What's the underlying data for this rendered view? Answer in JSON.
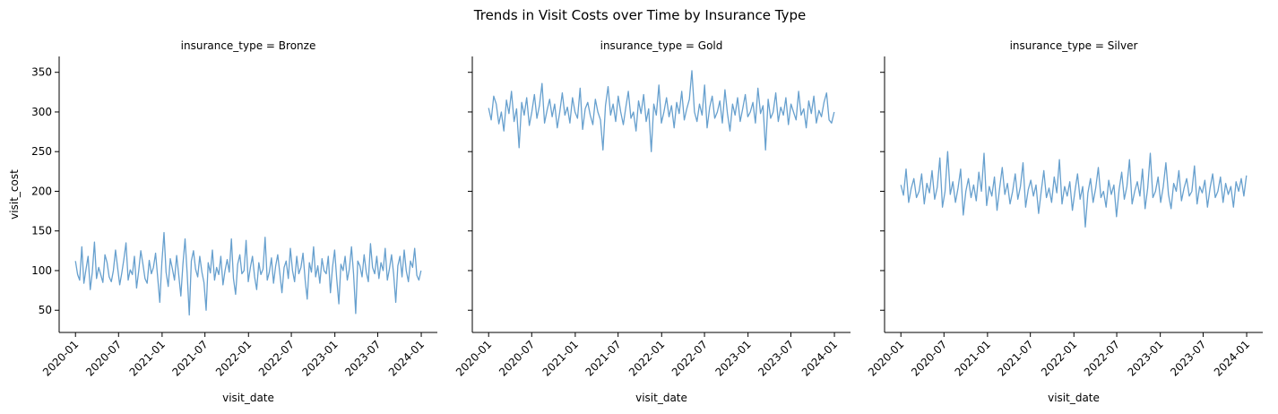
{
  "chart_data": {
    "type": "line",
    "title": "Trends in Visit Costs over Time by Insurance Type",
    "xlabel": "visit_date",
    "ylabel": "visit_cost",
    "ylim": [
      22,
      370
    ],
    "yticks": [
      50,
      100,
      150,
      200,
      250,
      300,
      350
    ],
    "xlim": [
      "2019-10-24",
      "2024-03-09"
    ],
    "xticks": [
      "2020-01",
      "2020-07",
      "2021-01",
      "2021-07",
      "2022-01",
      "2022-07",
      "2023-01",
      "2023-07",
      "2024-01"
    ],
    "sharey": true,
    "grid": false,
    "line_color": "#4c8fc6",
    "facets": [
      {
        "title": "insurance_type = Bronze",
        "name": "Bronze",
        "x_start": "2020-01-01",
        "x_end": "2023-12-31",
        "mean": 100,
        "typical_range": [
          80,
          120
        ],
        "values": [
          112,
          95,
          88,
          130,
          84,
          102,
          118,
          76,
          98,
          136,
          90,
          104,
          95,
          85,
          120,
          110,
          92,
          86,
          100,
          126,
          104,
          82,
          97,
          115,
          135,
          88,
          101,
          95,
          118,
          78,
          100,
          125,
          108,
          90,
          84,
          113,
          96,
          104,
          122,
          92,
          60,
          110,
          148,
          98,
          80,
          115,
          102,
          88,
          119,
          95,
          68,
          108,
          140,
          97,
          44,
          112,
          125,
          102,
          92,
          118,
          98,
          85,
          50,
          110,
          97,
          126,
          88,
          104,
          95,
          118,
          82,
          100,
          114,
          98,
          140,
          90,
          70,
          108,
          120,
          96,
          100,
          138,
          86,
          104,
          118,
          92,
          76,
          110,
          95,
          102,
          142,
          88,
          98,
          116,
          84,
          106,
          120,
          96,
          72,
          104,
          112,
          90,
          128,
          100,
          86,
          118,
          96,
          104,
          122,
          88,
          64,
          110,
          98,
          130,
          92,
          106,
          84,
          115,
          100,
          96,
          118,
          72,
          104,
          126,
          90,
          58,
          108,
          100,
          118,
          88,
          102,
          130,
          96,
          46,
          112,
          106,
          92,
          120,
          98,
          86,
          134,
          104,
          96,
          118,
          90,
          110,
          100,
          128,
          88,
          102,
          120,
          96,
          60,
          106,
          118,
          92,
          126,
          100,
          86,
          112,
          104,
          128,
          94,
          88,
          100
        ]
      },
      {
        "title": "insurance_type = Gold",
        "name": "Gold",
        "x_start": "2020-01-01",
        "x_end": "2023-12-31",
        "mean": 300,
        "typical_range": [
          280,
          320
        ],
        "values": [
          305,
          290,
          320,
          310,
          285,
          300,
          276,
          315,
          298,
          326,
          288,
          304,
          255,
          312,
          296,
          318,
          283,
          300,
          322,
          292,
          308,
          336,
          286,
          302,
          316,
          294,
          310,
          280,
          300,
          324,
          296,
          306,
          286,
          318,
          300,
          292,
          330,
          278,
          304,
          312,
          296,
          284,
          316,
          300,
          290,
          252,
          308,
          332,
          296,
          310,
          288,
          320,
          300,
          284,
          306,
          326,
          292,
          300,
          276,
          314,
          298,
          322,
          288,
          304,
          250,
          310,
          296,
          334,
          286,
          300,
          318,
          294,
          308,
          280,
          312,
          298,
          326,
          290,
          304,
          316,
          352,
          300,
          288,
          310,
          296,
          334,
          280,
          306,
          320,
          292,
          300,
          314,
          286,
          328,
          298,
          276,
          310,
          296,
          318,
          288,
          304,
          322,
          294,
          300,
          312,
          286,
          330,
          298,
          308,
          252,
          316,
          292,
          300,
          324,
          288,
          306,
          296,
          318,
          284,
          310,
          300,
          290,
          326,
          296,
          304,
          280,
          314,
          298,
          320,
          286,
          302,
          294,
          312,
          324,
          290,
          286,
          300
        ]
      },
      {
        "title": "insurance_type = Silver",
        "name": "Silver",
        "x_start": "2020-01-01",
        "x_end": "2023-12-31",
        "mean": 200,
        "typical_range": [
          180,
          220
        ],
        "values": [
          208,
          195,
          228,
          186,
          204,
          216,
          192,
          200,
          222,
          184,
          210,
          198,
          226,
          190,
          205,
          242,
          180,
          200,
          250,
          196,
          212,
          186,
          204,
          228,
          170,
          200,
          216,
          192,
          208,
          188,
          224,
          200,
          248,
          182,
          206,
          194,
          218,
          176,
          204,
          230,
          196,
          210,
          184,
          200,
          222,
          190,
          206,
          236,
          180,
          202,
          214,
          194,
          208,
          172,
          200,
          226,
          192,
          204,
          186,
          218,
          198,
          240,
          184,
          206,
          194,
          212,
          176,
          200,
          222,
          190,
          206,
          155,
          198,
          216,
          186,
          204,
          230,
          192,
          200,
          180,
          214,
          196,
          208,
          168,
          202,
          224,
          190,
          206,
          240,
          184,
          200,
          212,
          194,
          228,
          178,
          204,
          248,
          192,
          200,
          218,
          186,
          206,
          236,
          196,
          178,
          210,
          200,
          226,
          188,
          204,
          216,
          194,
          200,
          232,
          184,
          206,
          198,
          214,
          180,
          204,
          222,
          192,
          200,
          218,
          186,
          210,
          196,
          206,
          180,
          212,
          200,
          216,
          194,
          220
        ]
      }
    ]
  }
}
